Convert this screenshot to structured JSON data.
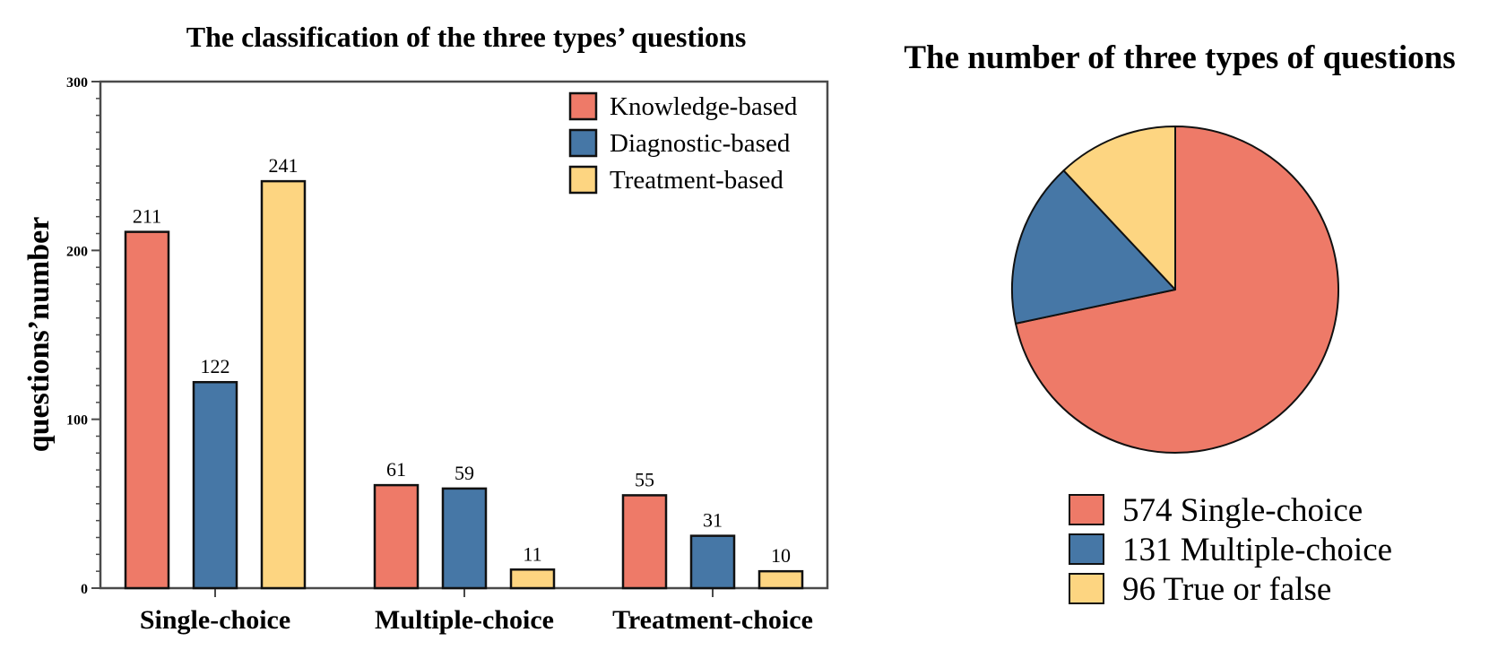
{
  "chart_data": [
    {
      "type": "bar",
      "title": "The classification of the three types’ questions",
      "ylabel": "questions’number",
      "xlabel": "",
      "ylim": [
        0,
        300
      ],
      "yticks": [
        "0",
        "100",
        "200",
        "300"
      ],
      "categories": [
        "Single-choice",
        "Multiple-choice",
        "Treatment-choice"
      ],
      "series": [
        {
          "name": "Knowledge-based",
          "color": "#ee7a68",
          "values": [
            211,
            61,
            55
          ]
        },
        {
          "name": "Diagnostic-based",
          "color": "#4677a6",
          "values": [
            122,
            59,
            31
          ]
        },
        {
          "name": "Treatment-based",
          "color": "#fdd581",
          "values": [
            241,
            11,
            10
          ]
        }
      ],
      "legend": "top-right",
      "grid": false
    },
    {
      "type": "pie",
      "title": "The number of three types of questions",
      "slices": [
        {
          "label": "574 Single-choice",
          "value": 574,
          "color": "#ee7a68"
        },
        {
          "label": "131 Multiple-choice",
          "value": 131,
          "color": "#4677a6"
        },
        {
          "label": "96 True or false",
          "value": 96,
          "color": "#fdd581"
        }
      ],
      "legend": "bottom"
    }
  ]
}
